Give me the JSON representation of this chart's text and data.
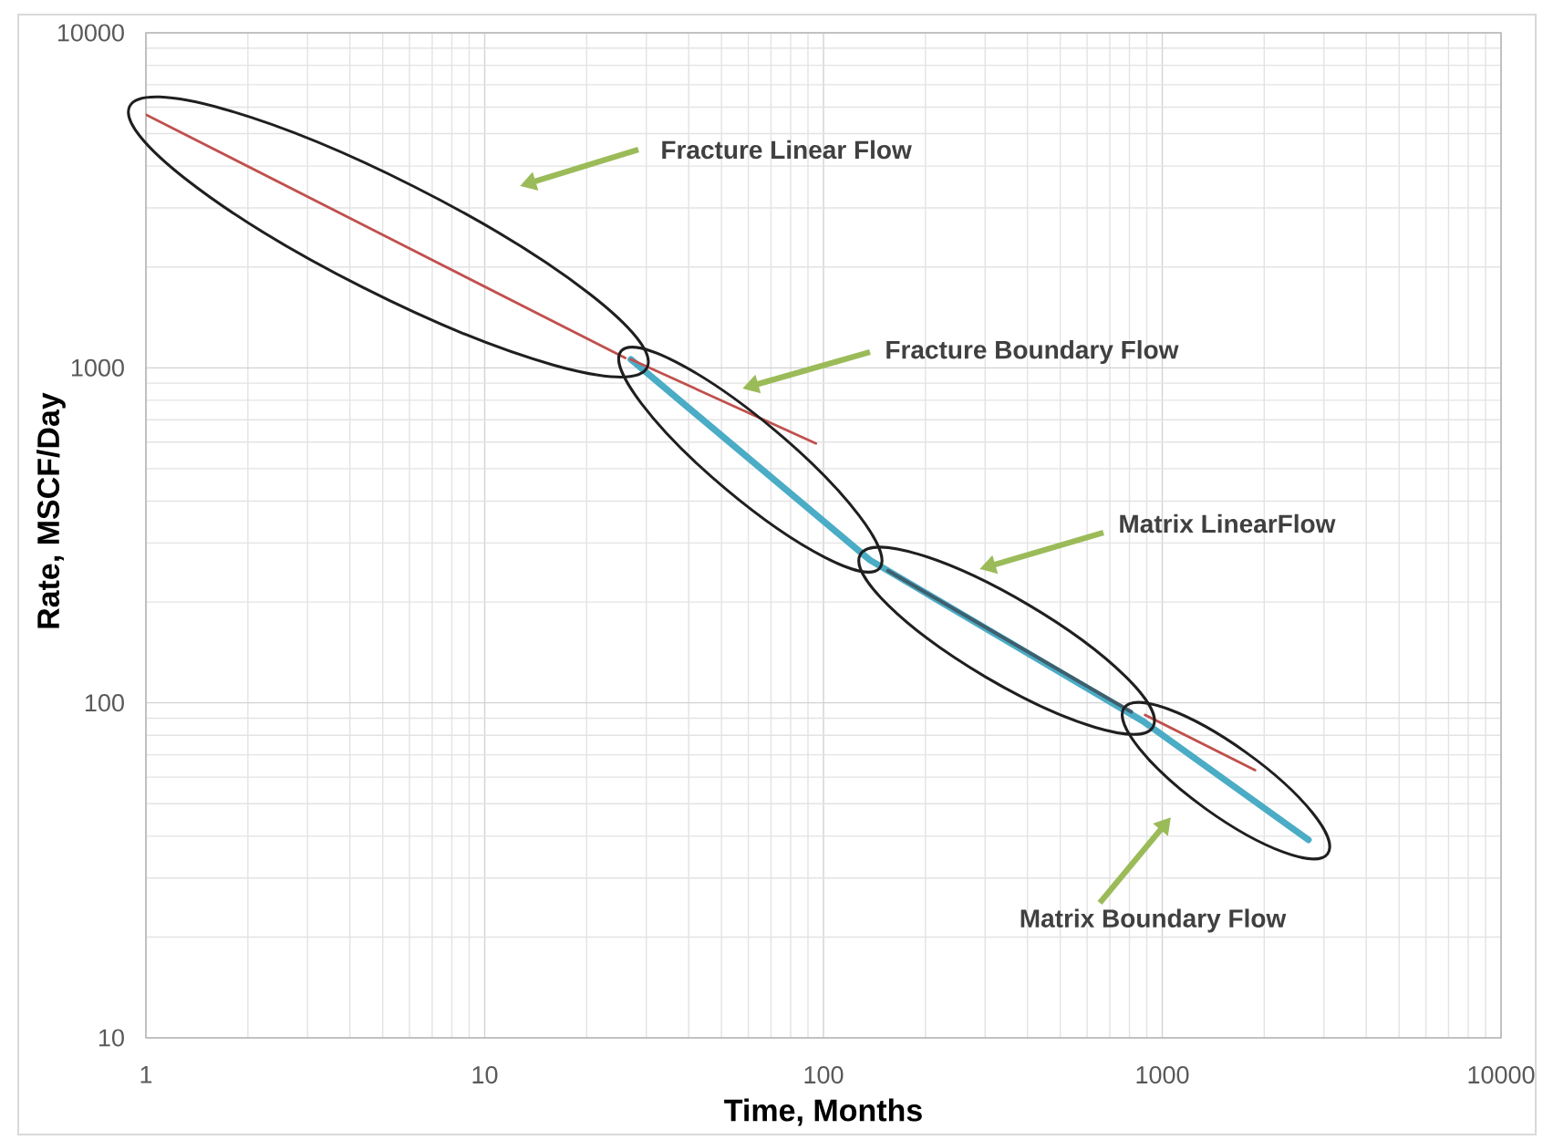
{
  "chart_data": {
    "type": "line",
    "xlabel": "Time, Months",
    "ylabel": "Rate, MSCF/Day",
    "log": "xy",
    "xlim": [
      1,
      10000
    ],
    "ylim": [
      10,
      10000
    ],
    "xticks": [
      1,
      10,
      100,
      1000,
      10000
    ],
    "yticks": [
      10,
      100,
      1000,
      10000
    ],
    "grid": true,
    "series": [
      {
        "color": "#4bacc6",
        "x": [
          27,
          137,
          880,
          2700
        ],
        "values": [
          1060,
          267,
          88,
          39
        ]
      },
      {
        "color": "#c0504d",
        "x": [
          1,
          26
        ],
        "values": [
          5700,
          1070
        ]
      },
      {
        "color": "#c0504d",
        "x": [
          27,
          95
        ],
        "values": [
          1060,
          595
        ]
      },
      {
        "color": "#3e5f6e",
        "x": [
          155,
          810
        ],
        "values": [
          248,
          94
        ]
      },
      {
        "color": "#c0504d",
        "x": [
          890,
          1880
        ],
        "values": [
          92,
          63
        ]
      }
    ],
    "annotations": [
      "Fracture Linear Flow",
      "Fracture Boundary Flow",
      "Matrix LinearFlow",
      "Matrix Boundary Flow"
    ]
  }
}
